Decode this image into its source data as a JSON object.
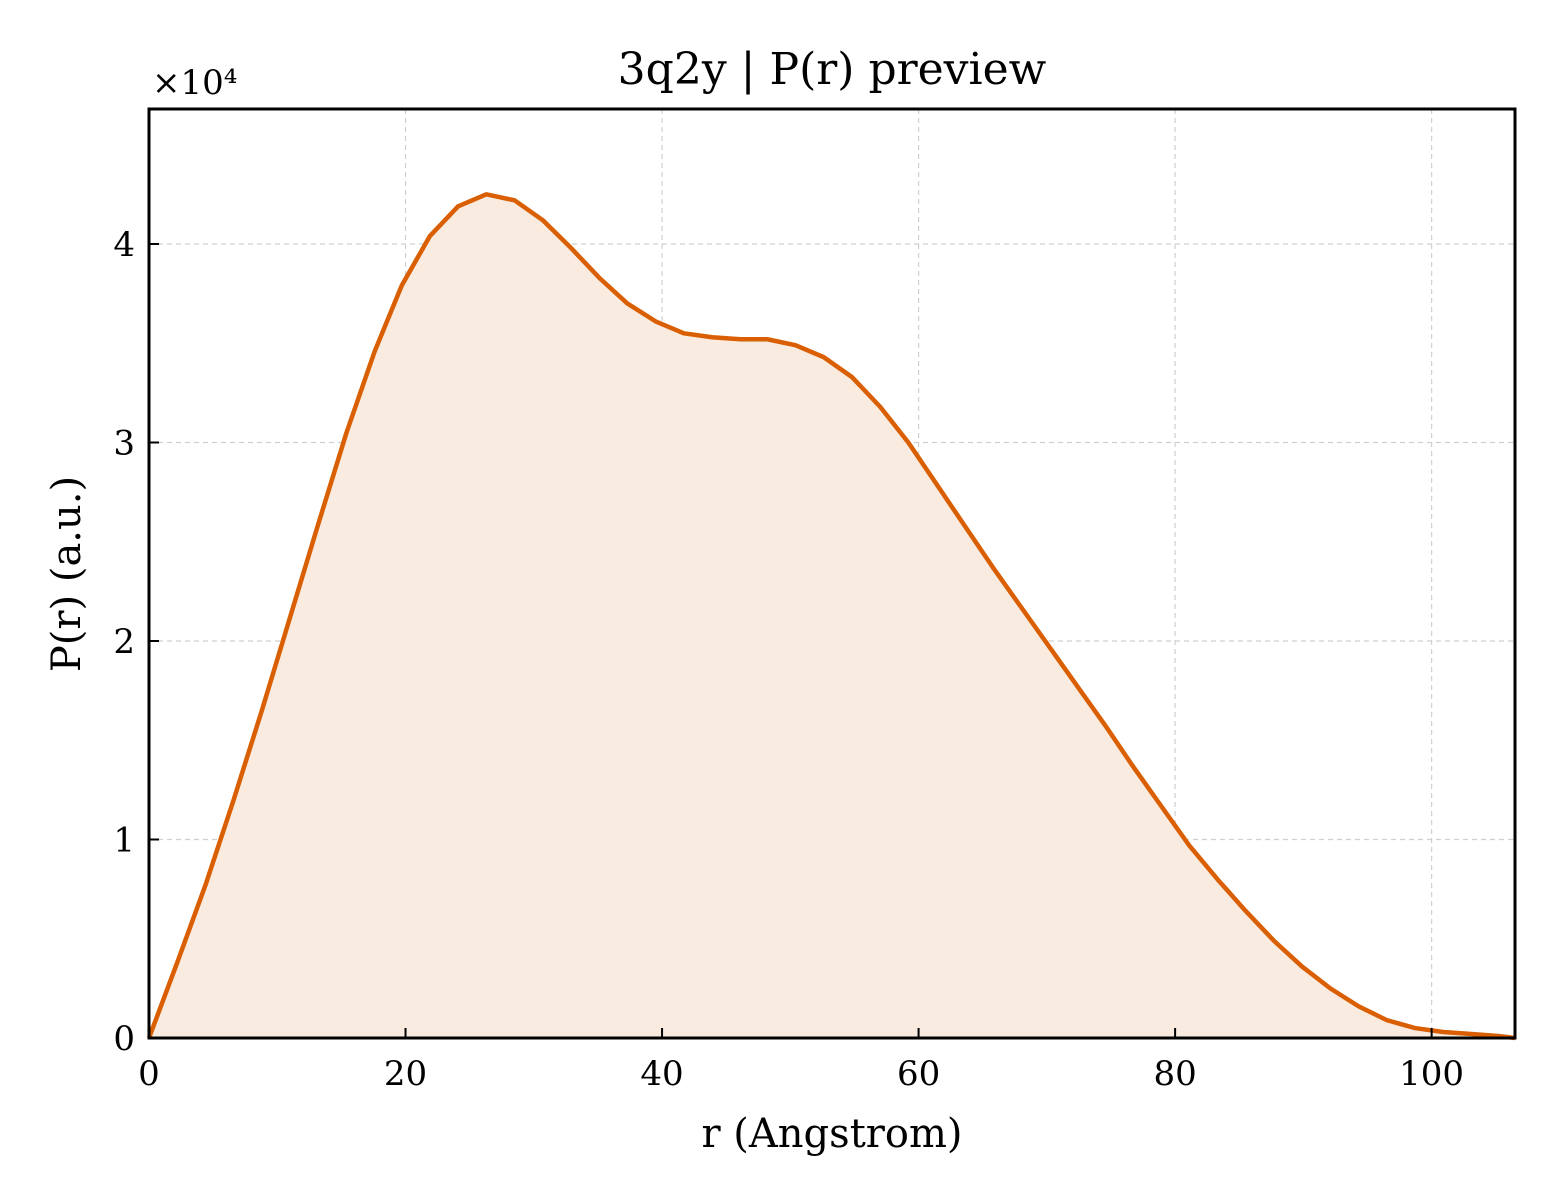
{
  "chart_data": {
    "type": "area",
    "title": "3q2y | P(r) preview",
    "xlabel": "r (Angstrom)",
    "ylabel": "P(r) (a.u.)",
    "y_offset_label": "×10⁴",
    "y_multiplier": 10000,
    "xlim": [
      0,
      106.5
    ],
    "ylim": [
      0,
      4.68
    ],
    "x_ticks": [
      0,
      20,
      40,
      60,
      80,
      100
    ],
    "y_ticks": [
      0,
      1,
      2,
      3,
      4
    ],
    "x_tick_labels": [
      "0",
      "20",
      "40",
      "60",
      "80",
      "100"
    ],
    "y_tick_labels": [
      "0",
      "1",
      "2",
      "3",
      "4"
    ],
    "grid": true,
    "line_color": "#d95f02",
    "fill_color": "#f9ebe0",
    "series": [
      {
        "x": [
          0,
          2.2,
          4.4,
          6.6,
          8.8,
          11.0,
          13.2,
          15.4,
          17.6,
          19.7,
          21.9,
          24.1,
          26.3,
          28.5,
          30.7,
          32.9,
          35.1,
          37.3,
          39.5,
          41.7,
          43.9,
          46.1,
          48.2,
          50.4,
          52.6,
          54.8,
          57.0,
          59.2,
          61.4,
          63.6,
          65.8,
          68.0,
          70.2,
          72.4,
          74.6,
          76.7,
          78.9,
          81.1,
          83.3,
          85.5,
          87.7,
          89.9,
          92.1,
          94.3,
          96.5,
          98.7,
          100.9,
          103.1,
          105.2,
          106.5
        ],
        "y": [
          0.0,
          0.38,
          0.77,
          1.2,
          1.65,
          2.12,
          2.59,
          3.05,
          3.46,
          3.79,
          4.04,
          4.19,
          4.25,
          4.22,
          4.12,
          3.98,
          3.83,
          3.7,
          3.61,
          3.55,
          3.53,
          3.52,
          3.52,
          3.49,
          3.43,
          3.33,
          3.18,
          3.0,
          2.79,
          2.58,
          2.37,
          2.17,
          1.97,
          1.77,
          1.57,
          1.37,
          1.17,
          0.97,
          0.8,
          0.64,
          0.49,
          0.36,
          0.25,
          0.16,
          0.09,
          0.05,
          0.03,
          0.02,
          0.01,
          0.0
        ]
      }
    ]
  }
}
